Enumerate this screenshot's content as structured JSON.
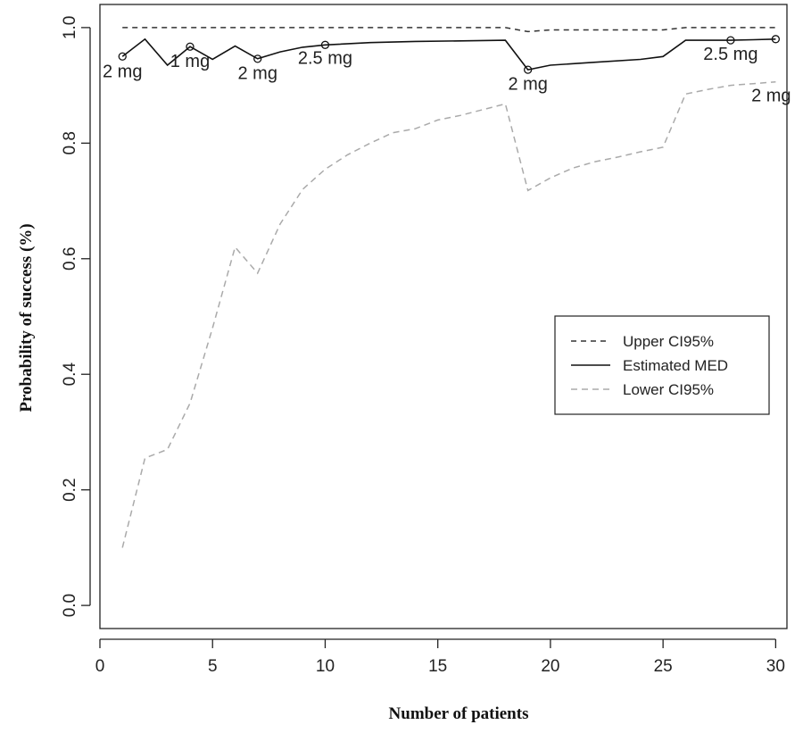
{
  "chart_data": {
    "type": "line",
    "xlabel": "Number of patients",
    "ylabel": "Probability of success (%)",
    "xlim": [
      0,
      30.5
    ],
    "ylim": [
      -0.04,
      1.04
    ],
    "xticks": [
      0,
      5,
      10,
      15,
      20,
      25,
      30
    ],
    "yticks": [
      0.0,
      0.2,
      0.4,
      0.6,
      0.8,
      1.0
    ],
    "ytick_labels": [
      "0.0",
      "0.2",
      "0.4",
      "0.6",
      "0.8",
      "1.0"
    ],
    "grid": false,
    "legend_placement": "right",
    "series": [
      {
        "name": "Upper CI95%",
        "style": "dashed",
        "color": "#333333",
        "x": [
          1,
          17,
          18,
          19,
          20,
          25,
          26,
          30
        ],
        "y": [
          1.0,
          1.0,
          1.0,
          0.993,
          0.996,
          0.996,
          1.0,
          1.0
        ]
      },
      {
        "name": "Estimated MED",
        "style": "solid",
        "color": "#111111",
        "x": [
          1,
          2,
          3,
          4,
          5,
          6,
          7,
          8,
          9,
          10,
          12,
          14,
          16,
          18,
          19,
          20,
          22,
          24,
          25,
          26,
          27,
          28,
          29,
          30
        ],
        "y": [
          0.95,
          0.98,
          0.935,
          0.967,
          0.945,
          0.968,
          0.946,
          0.958,
          0.966,
          0.97,
          0.974,
          0.976,
          0.977,
          0.978,
          0.927,
          0.935,
          0.94,
          0.945,
          0.95,
          0.978,
          0.978,
          0.978,
          0.979,
          0.98
        ]
      },
      {
        "name": "Lower CI95%",
        "style": "dashed",
        "color": "#aaaaaa",
        "x": [
          1,
          2,
          3,
          4,
          5,
          6,
          7,
          8,
          9,
          10,
          11,
          12,
          13,
          14,
          15,
          16,
          17,
          18,
          19,
          20,
          21,
          22,
          23,
          24,
          25,
          26,
          27,
          28,
          29,
          30
        ],
        "y": [
          0.1,
          0.255,
          0.27,
          0.35,
          0.48,
          0.62,
          0.575,
          0.66,
          0.72,
          0.755,
          0.78,
          0.8,
          0.818,
          0.825,
          0.84,
          0.848,
          0.858,
          0.868,
          0.718,
          0.74,
          0.757,
          0.768,
          0.776,
          0.785,
          0.793,
          0.885,
          0.893,
          0.9,
          0.903,
          0.906
        ]
      }
    ],
    "markers": [
      {
        "x": 1,
        "y": 0.95
      },
      {
        "x": 4,
        "y": 0.967
      },
      {
        "x": 7,
        "y": 0.946
      },
      {
        "x": 10,
        "y": 0.97
      },
      {
        "x": 19,
        "y": 0.927
      },
      {
        "x": 28,
        "y": 0.978
      },
      {
        "x": 30,
        "y": 0.98
      }
    ],
    "annotations": [
      {
        "text": "2 mg",
        "x": 1.0,
        "y": 0.925
      },
      {
        "text": "1 mg",
        "x": 4.0,
        "y": 0.943
      },
      {
        "text": "2 mg",
        "x": 7.0,
        "y": 0.922
      },
      {
        "text": "2.5 mg",
        "x": 10.0,
        "y": 0.948
      },
      {
        "text": "2 mg",
        "x": 19.0,
        "y": 0.903
      },
      {
        "text": "2.5 mg",
        "x": 28.0,
        "y": 0.955
      },
      {
        "text": "2 mg",
        "x": 29.8,
        "y": 0.883
      }
    ]
  }
}
